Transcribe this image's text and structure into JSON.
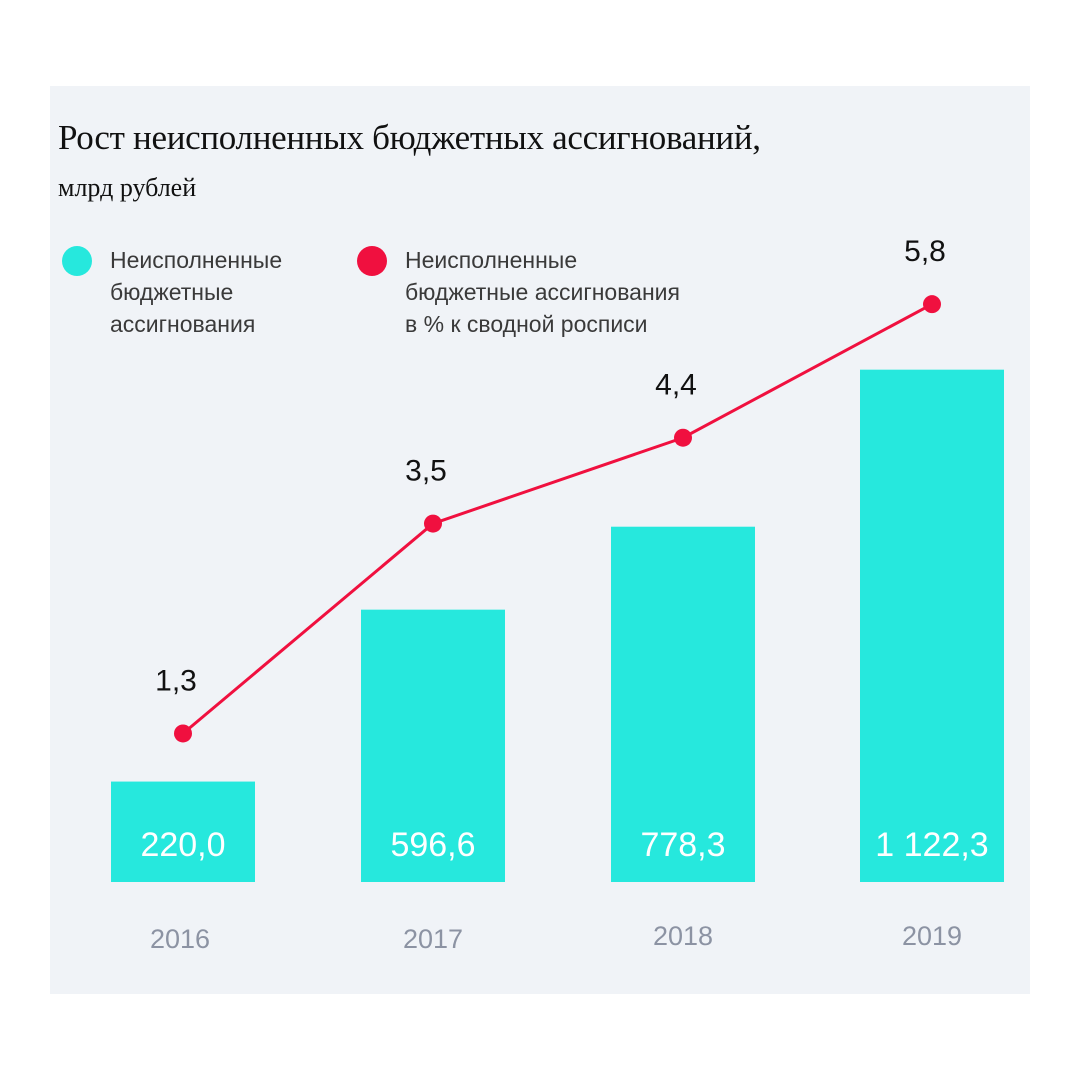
{
  "title": "Рост неисполненных бюджетных ассигнований,",
  "subtitle": "млрд рублей",
  "legend": [
    {
      "label": "Неисполненные\nбюджетные\nассигнования",
      "color": "#26e8dd"
    },
    {
      "label": "Неисполненные\nбюджетные ассигнования\nв % к сводной росписи",
      "color": "#f0103f"
    }
  ],
  "chart_data": {
    "type": "bar+line",
    "categories": [
      "2016",
      "2017",
      "2018",
      "2019"
    ],
    "series": [
      {
        "name": "Неисполненные бюджетные ассигнования",
        "type": "bar",
        "values": [
          220.0,
          596.6,
          778.3,
          1122.3
        ],
        "labels": [
          "220,0",
          "596,6",
          "778,3",
          "1 122,3"
        ],
        "color": "#26e8dd",
        "label_color": "#ffffff"
      },
      {
        "name": "Неисполненные бюджетные ассигнования в % к сводной росписи",
        "type": "line",
        "values": [
          1.3,
          3.5,
          4.4,
          5.8
        ],
        "labels": [
          "1,3",
          "3,5",
          "4,4",
          "5,8"
        ],
        "color": "#f0103f",
        "label_color": "#111111"
      }
    ],
    "tick_color": "#8c93a3"
  }
}
